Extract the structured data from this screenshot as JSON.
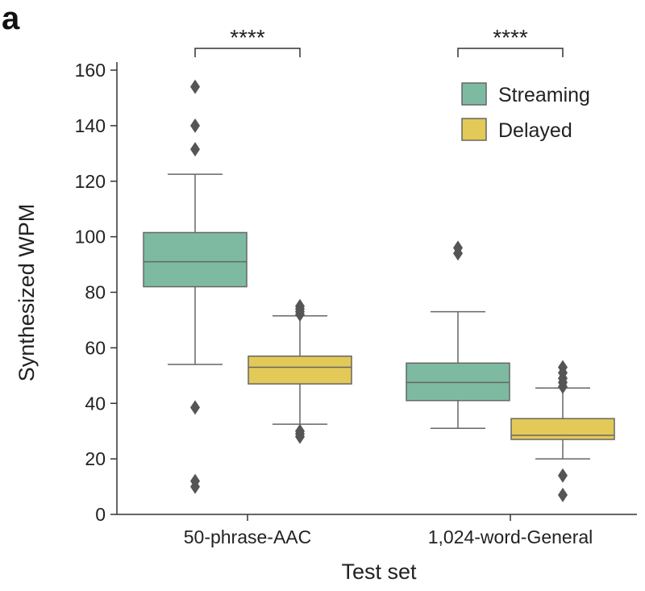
{
  "panel_label": "a",
  "chart_data": {
    "type": "box",
    "title": "",
    "xlabel": "Test set",
    "ylabel": "Synthesized WPM",
    "ylim": [
      0,
      160
    ],
    "yticks": [
      0,
      20,
      40,
      60,
      80,
      100,
      120,
      140,
      160
    ],
    "grid": false,
    "legend_position": "top-right",
    "categories": [
      "50-phrase-AAC",
      "1,024-word-General"
    ],
    "series": [
      {
        "name": "Streaming",
        "color": "#7dbaa1",
        "boxes": [
          {
            "q1": 82,
            "median": 91,
            "q3": 101.5,
            "whisker_low": 54,
            "whisker_high": 122.5,
            "outliers": [
              154,
              140,
              131.5,
              38.5,
              12,
              10
            ]
          },
          {
            "q1": 41,
            "median": 47.5,
            "q3": 54.5,
            "whisker_low": 31,
            "whisker_high": 73,
            "outliers": [
              96,
              94
            ]
          }
        ]
      },
      {
        "name": "Delayed",
        "color": "#e3c957",
        "boxes": [
          {
            "q1": 47,
            "median": 53,
            "q3": 57,
            "whisker_low": 32.5,
            "whisker_high": 71.5,
            "outliers": [
              75,
              74,
              73,
              72,
              30,
              29,
              28
            ]
          },
          {
            "q1": 27,
            "median": 28.5,
            "q3": 34.5,
            "whisker_low": 20,
            "whisker_high": 45.5,
            "outliers": [
              53,
              51,
              49,
              47.5,
              46,
              14,
              7
            ]
          }
        ]
      }
    ],
    "significance": [
      {
        "category_index": 0,
        "label": "****"
      },
      {
        "category_index": 1,
        "label": "****"
      }
    ]
  }
}
